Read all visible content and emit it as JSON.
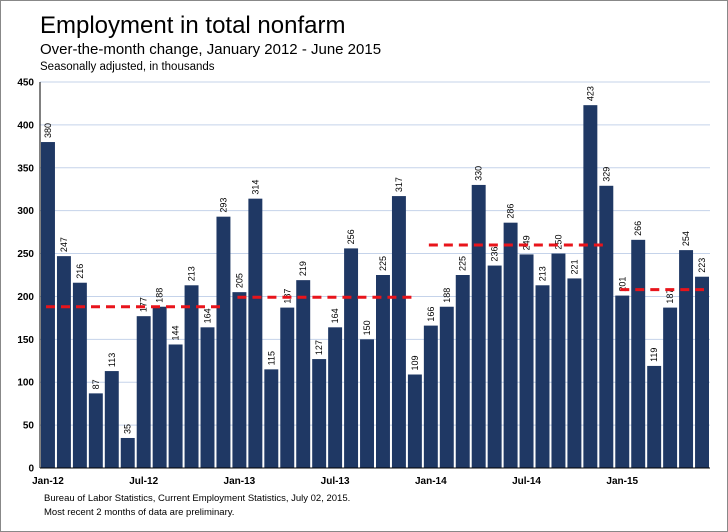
{
  "chart_data": {
    "type": "bar",
    "title": "Employment in total nonfarm",
    "subtitle": "Over-the-month change, January 2012 - June 2015",
    "note": "Seasonally adjusted, in thousands",
    "source": "Bureau of Labor Statistics, Current Employment Statistics, July 02, 2015.",
    "footnote": "Most recent 2 months of data are preliminary.",
    "categories": [
      "Jan-12",
      null,
      null,
      null,
      null,
      null,
      "Jul-12",
      null,
      null,
      null,
      null,
      null,
      "Jan-13",
      null,
      null,
      null,
      null,
      null,
      "Jul-13",
      null,
      null,
      null,
      null,
      null,
      "Jan-14",
      null,
      null,
      null,
      null,
      null,
      "Jul-14",
      null,
      null,
      null,
      null,
      null,
      "Jan-15",
      null,
      null,
      null,
      null,
      null
    ],
    "values": [
      380,
      247,
      216,
      87,
      113,
      35,
      177,
      188,
      144,
      213,
      164,
      293,
      205,
      314,
      115,
      187,
      219,
      127,
      164,
      256,
      150,
      225,
      317,
      109,
      166,
      188,
      225,
      330,
      236,
      286,
      249,
      213,
      250,
      221,
      423,
      329,
      201,
      266,
      119,
      187,
      254,
      223
    ],
    "color": "#1f3864",
    "annual_averages": {
      "color": "#e8141b",
      "values": [
        188,
        199,
        260,
        208
      ]
    },
    "ylim": [
      0,
      450
    ],
    "yticks": [
      0,
      50,
      100,
      150,
      200,
      250,
      300,
      350,
      400,
      450
    ],
    "grid": true
  }
}
